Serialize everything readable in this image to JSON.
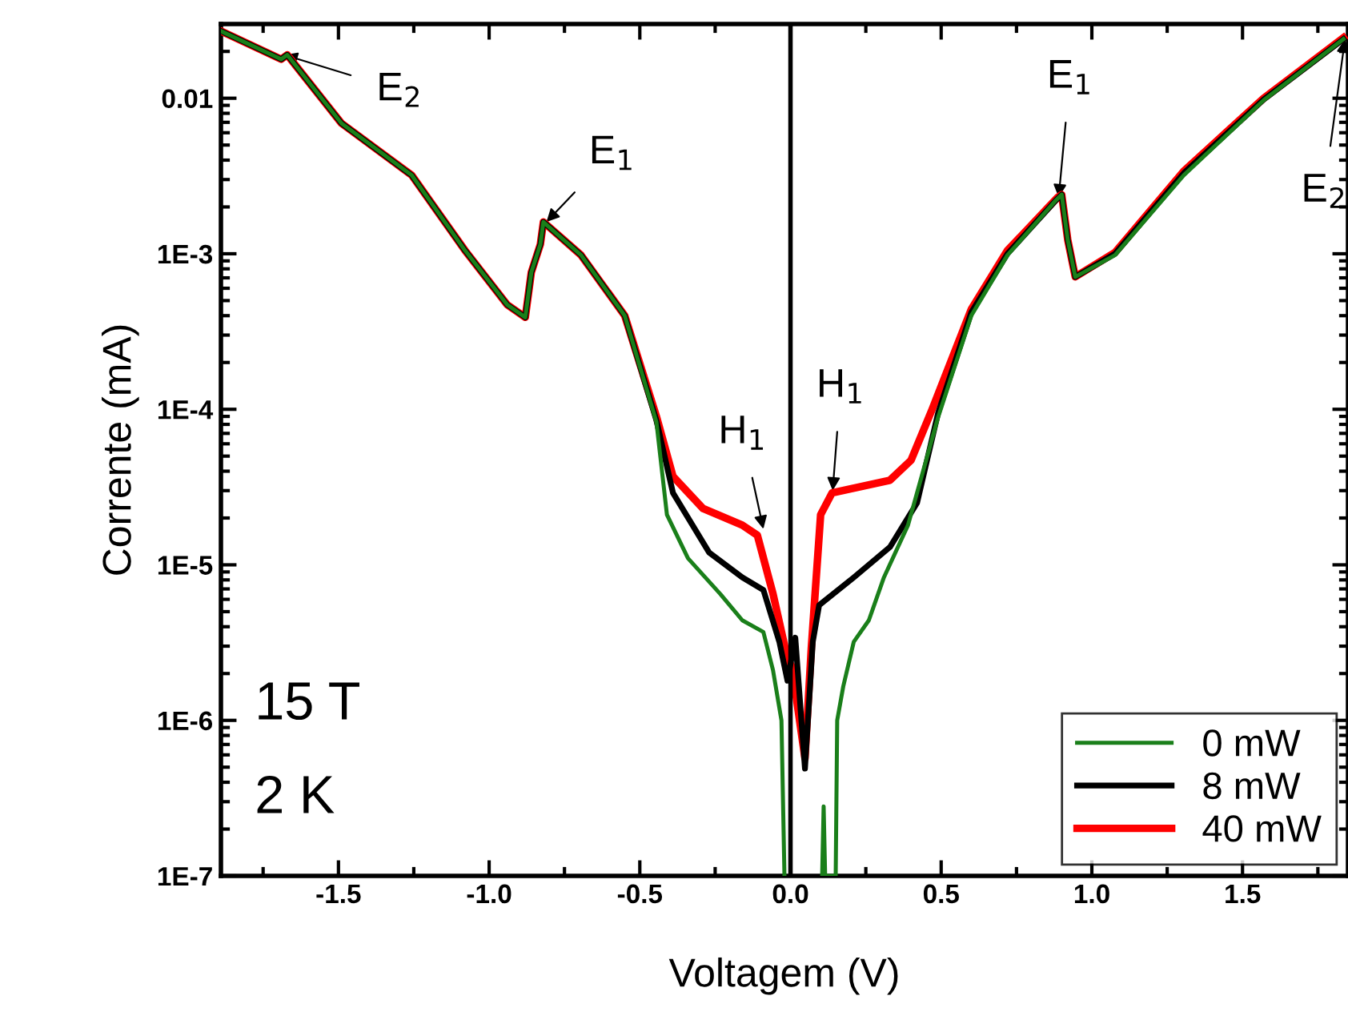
{
  "chart_data": {
    "type": "line",
    "xlabel": "Voltagem (V)",
    "ylabel": "Corrente (mA)",
    "log": "y",
    "xlim": [
      -1.89,
      1.85
    ],
    "xticks": [
      {
        "value": -1.5,
        "label": "-1.5"
      },
      {
        "value": -1.0,
        "label": "-1.0"
      },
      {
        "value": -0.5,
        "label": "-0.5"
      },
      {
        "value": 0.0,
        "label": "0.0"
      },
      {
        "value": 0.5,
        "label": "0.5"
      },
      {
        "value": 1.0,
        "label": "1.0"
      },
      {
        "value": 1.5,
        "label": "1.5"
      }
    ],
    "ylim": [
      1e-07,
      0.03
    ],
    "yticks": [
      {
        "value": 1e-07,
        "label": "1E-7"
      },
      {
        "value": 1e-06,
        "label": "1E-6"
      },
      {
        "value": 1e-05,
        "label": "1E-5"
      },
      {
        "value": 0.0001,
        "label": "1E-4"
      },
      {
        "value": 0.001,
        "label": "1E-3"
      },
      {
        "value": 0.01,
        "label": "0.01"
      }
    ],
    "grid": false,
    "legend": "bottom right",
    "marker": "none",
    "line_style": "solid",
    "series": [
      {
        "name": "0 mW",
        "color": "#1a7f1a",
        "x": [
          -1.89,
          -1.69,
          -1.67,
          -1.49,
          -1.257,
          -1.08,
          -0.94,
          -0.88,
          -0.86,
          -0.83,
          -0.82,
          -0.695,
          -0.55,
          -0.445,
          -0.41,
          -0.34,
          -0.233,
          -0.16,
          -0.09,
          -0.058,
          -0.03,
          -0.02,
          0.0,
          0.105,
          0.11,
          0.115,
          0.15,
          0.155,
          0.175,
          0.21,
          0.26,
          0.31,
          0.39,
          0.49,
          0.6,
          0.72,
          0.88,
          0.9,
          0.92,
          0.945,
          1.077,
          1.305,
          1.57,
          1.835
        ],
        "values": [
          0.027,
          0.0178,
          0.019,
          0.0069,
          0.0032,
          0.00105,
          0.00047,
          0.00039,
          0.00076,
          0.00115,
          0.0016,
          0.00098,
          0.0004,
          8.3e-05,
          2.1e-05,
          1.1e-05,
          6.5e-06,
          4.4e-06,
          3.7e-06,
          2.1e-06,
          1e-06,
          1e-07,
          null,
          1e-07,
          2.8e-07,
          1e-07,
          1e-07,
          1e-06,
          1.65e-06,
          3.2e-06,
          4.4e-06,
          8.3e-06,
          1.8e-05,
          8.9e-05,
          0.0004,
          0.00098,
          0.0022,
          0.0024,
          0.00123,
          0.00071,
          0.00098,
          0.0032,
          0.0097,
          0.024
        ]
      },
      {
        "name": "8 mW",
        "color": "#000000",
        "x": [
          -1.89,
          -1.69,
          -1.67,
          -1.49,
          -1.257,
          -1.08,
          -0.94,
          -0.88,
          -0.86,
          -0.83,
          -0.82,
          -0.695,
          -0.55,
          -0.445,
          -0.39,
          -0.27,
          -0.16,
          -0.09,
          -0.037,
          -0.01,
          0.016,
          0.048,
          0.074,
          0.095,
          0.21,
          0.33,
          0.42,
          0.49,
          0.6,
          0.72,
          0.88,
          0.9,
          0.92,
          0.945,
          1.077,
          1.305,
          1.57,
          1.835
        ],
        "values": [
          0.027,
          0.0178,
          0.019,
          0.0069,
          0.0032,
          0.00105,
          0.00047,
          0.00039,
          0.00076,
          0.00115,
          0.0016,
          0.00098,
          0.0004,
          8.5e-05,
          2.9e-05,
          1.2e-05,
          8.3e-06,
          6.9e-06,
          3.2e-06,
          1.8e-06,
          3.4e-06,
          4.9e-07,
          3.2e-06,
          5.5e-06,
          8.3e-06,
          1.3e-05,
          2.5e-05,
          9.5e-05,
          0.00042,
          0.001,
          0.0022,
          0.0024,
          0.00123,
          0.00071,
          0.001,
          0.0033,
          0.0098,
          0.024
        ]
      },
      {
        "name": "40 mW",
        "color": "#ff0000",
        "x": [
          -1.89,
          -1.69,
          -1.67,
          -1.49,
          -1.257,
          -1.08,
          -0.94,
          -0.88,
          -0.86,
          -0.83,
          -0.82,
          -0.695,
          -0.55,
          -0.445,
          -0.39,
          -0.29,
          -0.16,
          -0.11,
          -0.058,
          -0.01,
          0.005,
          0.048,
          0.069,
          0.1,
          0.138,
          0.33,
          0.4,
          0.47,
          0.6,
          0.72,
          0.886,
          0.9,
          0.92,
          0.945,
          1.077,
          1.305,
          1.57,
          1.835
        ],
        "values": [
          0.027,
          0.0178,
          0.019,
          0.0069,
          0.0032,
          0.00105,
          0.00047,
          0.00039,
          0.00076,
          0.00115,
          0.0016,
          0.00098,
          0.0004,
          9e-05,
          3.7e-05,
          2.3e-05,
          1.8e-05,
          1.55e-05,
          6.5e-06,
          2.5e-06,
          2.2e-06,
          5.7e-07,
          2.9e-06,
          2.1e-05,
          2.9e-05,
          3.5e-05,
          4.7e-05,
          0.0001,
          0.00044,
          0.00105,
          0.0023,
          0.0024,
          0.00123,
          0.00071,
          0.00102,
          0.0034,
          0.01,
          0.0245
        ]
      }
    ],
    "ref_lines": [
      {
        "axis": "x",
        "value": 0.0,
        "color": "#000000",
        "line_style": "solid"
      }
    ],
    "annotations": [
      {
        "text": "E$_{2}$",
        "x": -1.68,
        "y": 0.019
      },
      {
        "text": "E$_{1}$",
        "x": -0.81,
        "y": 0.0016
      },
      {
        "text": "H$_{1}$",
        "x": -0.09,
        "y": 1.7e-05
      },
      {
        "text": "H$_{1}$",
        "x": 0.14,
        "y": 3e-05
      },
      {
        "text": "E$_{1}$",
        "x": 0.89,
        "y": 0.0023
      },
      {
        "text": "E$_{2}$",
        "x": 1.84,
        "y": 0.024
      },
      "15 T",
      "2 K"
    ]
  }
}
